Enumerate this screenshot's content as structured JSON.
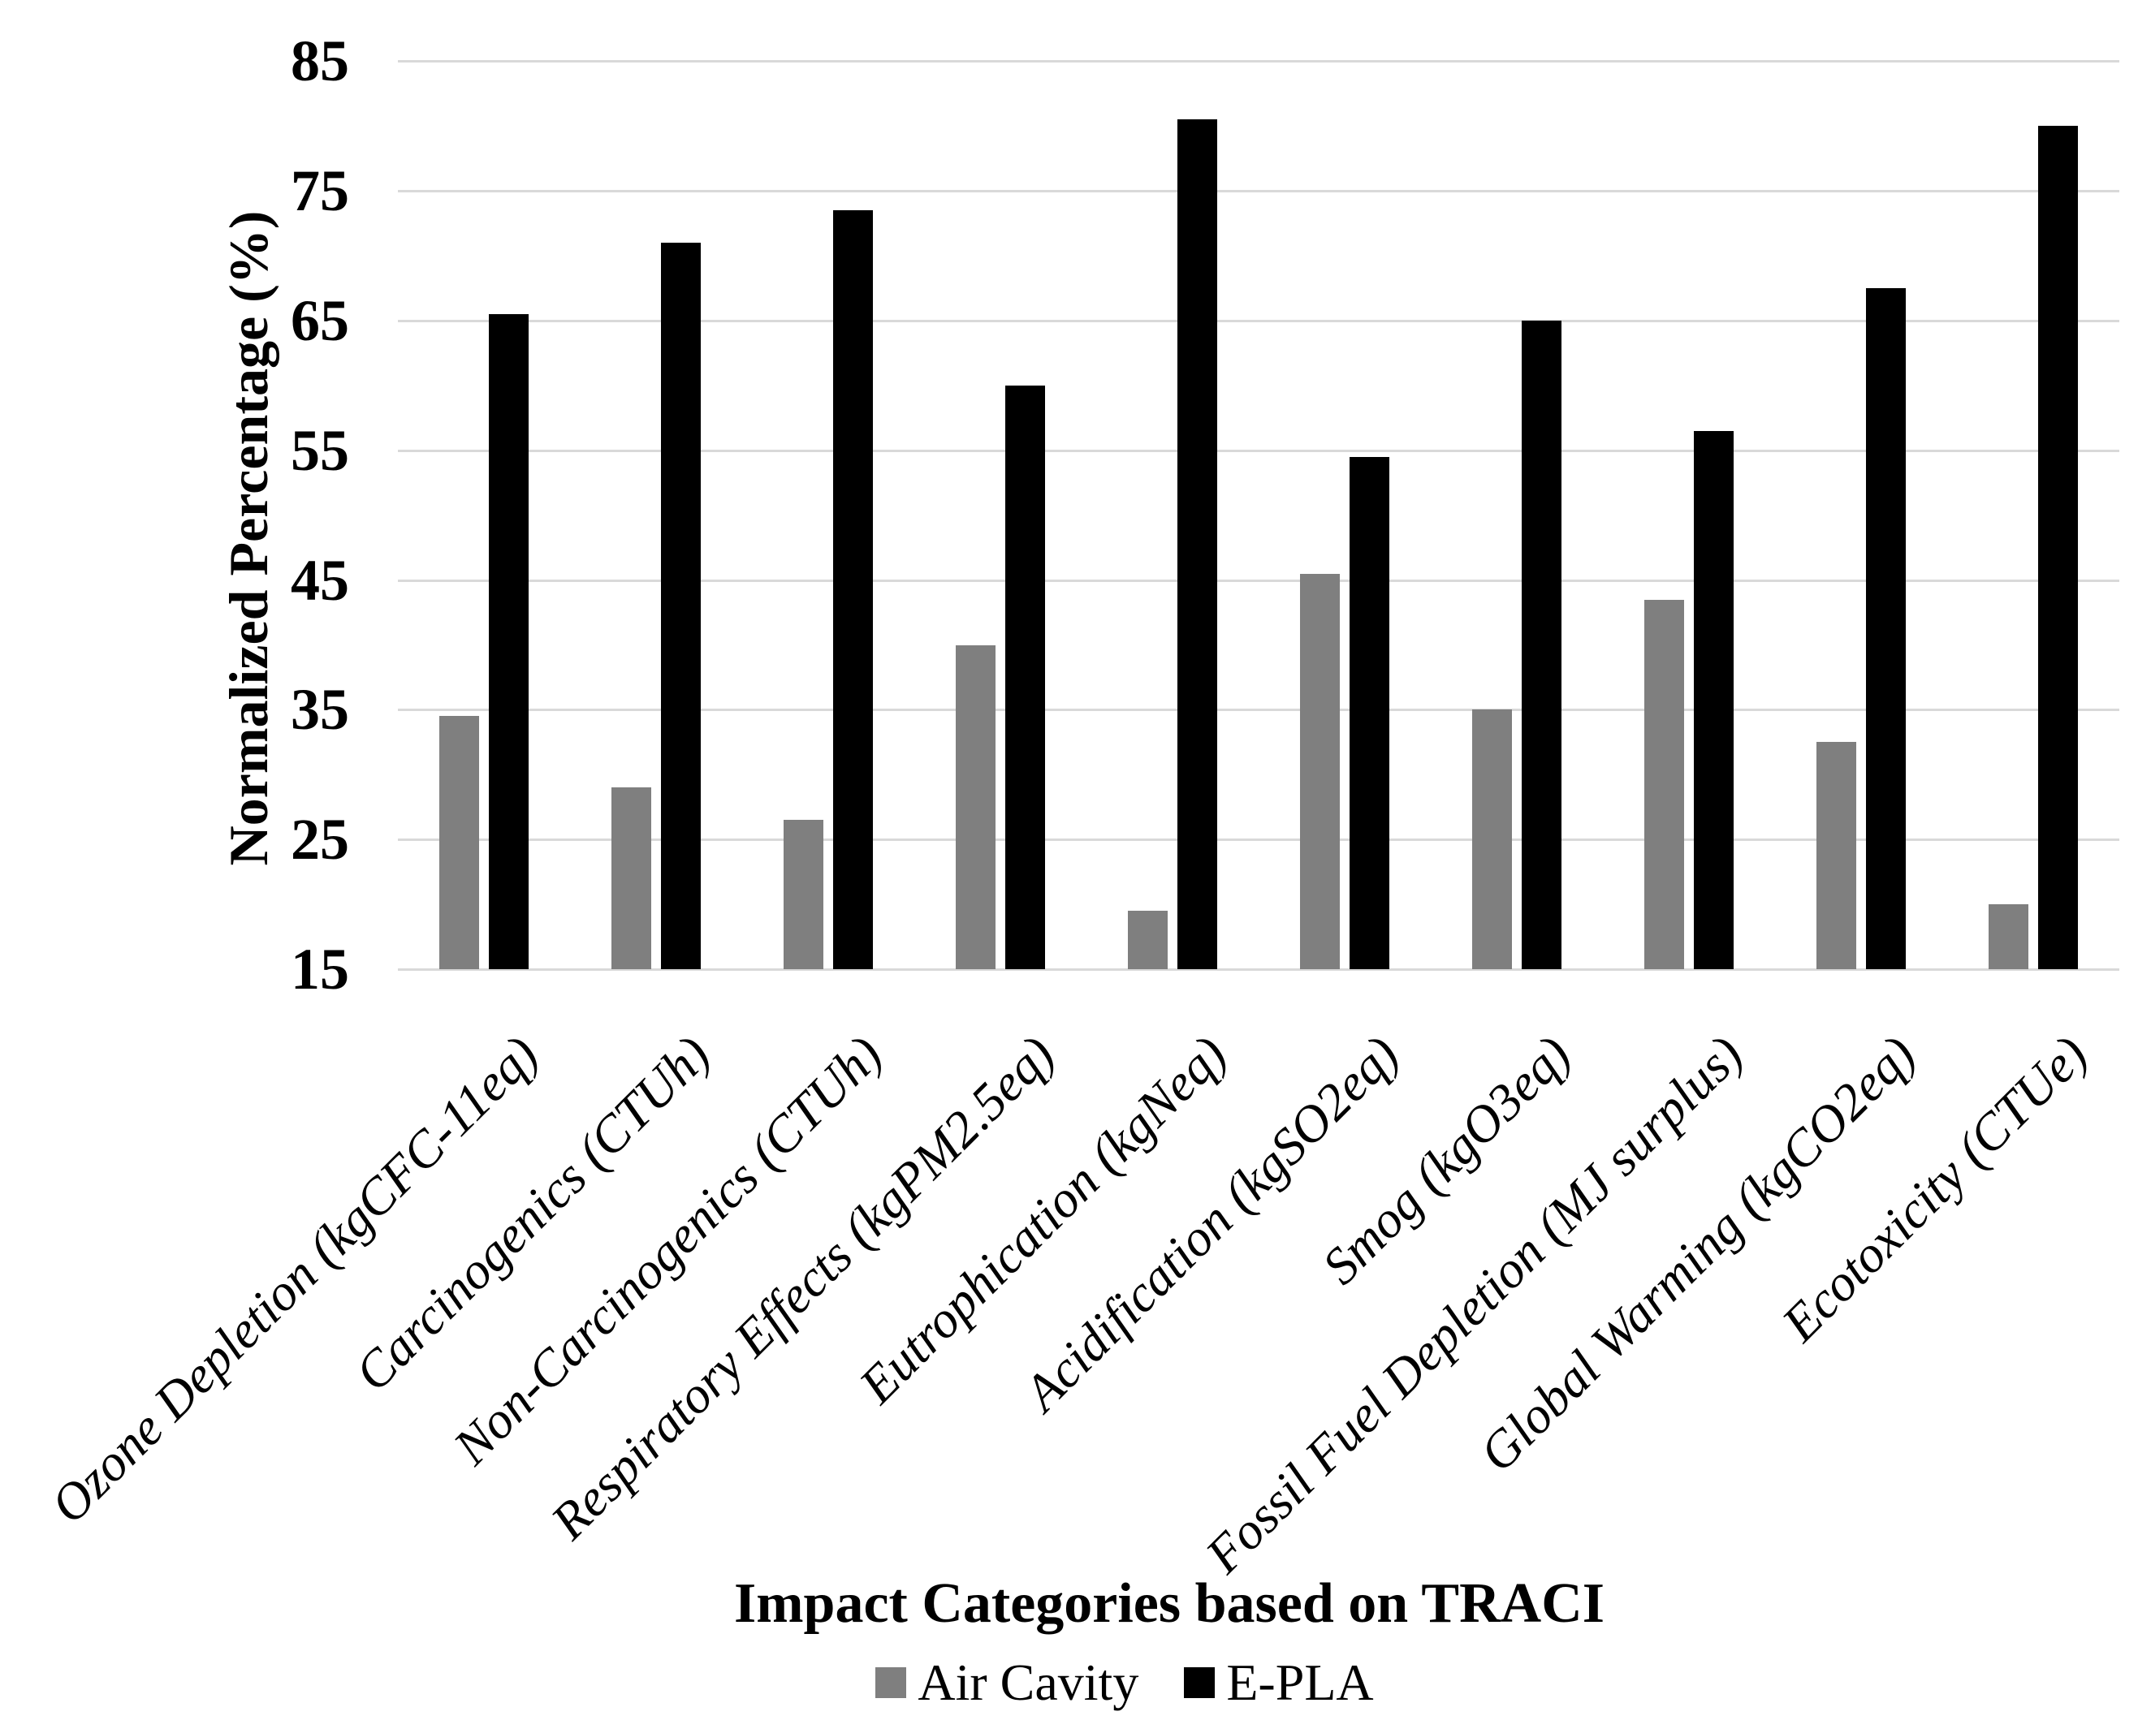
{
  "chart_data": {
    "type": "bar",
    "title": "",
    "xlabel": "Impact Categories based on TRACI",
    "ylabel": "Normalized Percentage (%)",
    "ylim": [
      15,
      85
    ],
    "ytick_interval": 10,
    "yticks": [
      85,
      75,
      65,
      55,
      45,
      35,
      25,
      15
    ],
    "grid": "horizontal-gridlines",
    "legend_position": "bottom",
    "categories": [
      "Ozone Depletion (kgCFC-11eq)",
      "Carcinogenics (CTUh)",
      "Non-Carcinogenics (CTUh)",
      "Respiratory Effects (kgPM2.5eq)",
      "Eutrophication (kgNeq)",
      "Acidification (kgSO2eq)",
      "Smog (kgO3eq)",
      "Fossil Fuel Depletion (MJ surplus)",
      "Global Warming (kgCO2eq)",
      "Ecotoxicity (CTUe)"
    ],
    "series": [
      {
        "name": "Air Cavity",
        "color": "#7f7f7f",
        "values": [
          34.5,
          29,
          26.5,
          40,
          19.5,
          45.5,
          35,
          43.5,
          32.5,
          20
        ]
      },
      {
        "name": "E-PLA",
        "color": "#000000",
        "values": [
          65.5,
          71,
          73.5,
          60,
          80.5,
          54.5,
          65,
          56.5,
          67.5,
          80
        ]
      }
    ]
  },
  "colors": {
    "gridline": "#d9d9d9",
    "background": "#ffffff",
    "text": "#000000"
  }
}
